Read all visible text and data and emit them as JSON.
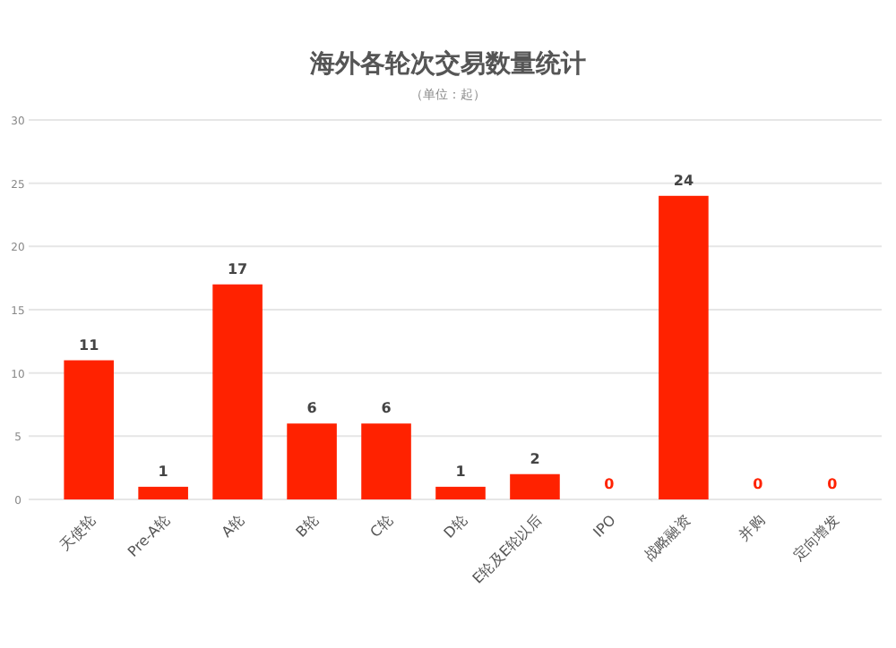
{
  "chart_data": {
    "type": "bar",
    "title": "海外各轮次交易数量统计",
    "subtitle": "（单位：起）",
    "categories": [
      "天使轮",
      "Pre-A轮",
      "A轮",
      "B轮",
      "C轮",
      "D轮",
      "E轮及E轮以后",
      "IPO",
      "战略融资",
      "并购",
      "定向增发"
    ],
    "values": [
      11,
      1,
      17,
      6,
      6,
      1,
      2,
      0,
      24,
      0,
      0
    ],
    "color": "#ff2200",
    "ylim": [
      0,
      30
    ],
    "yticks": [
      0,
      5,
      10,
      15,
      20,
      25,
      30
    ],
    "grid": "y",
    "data_labels": true
  }
}
